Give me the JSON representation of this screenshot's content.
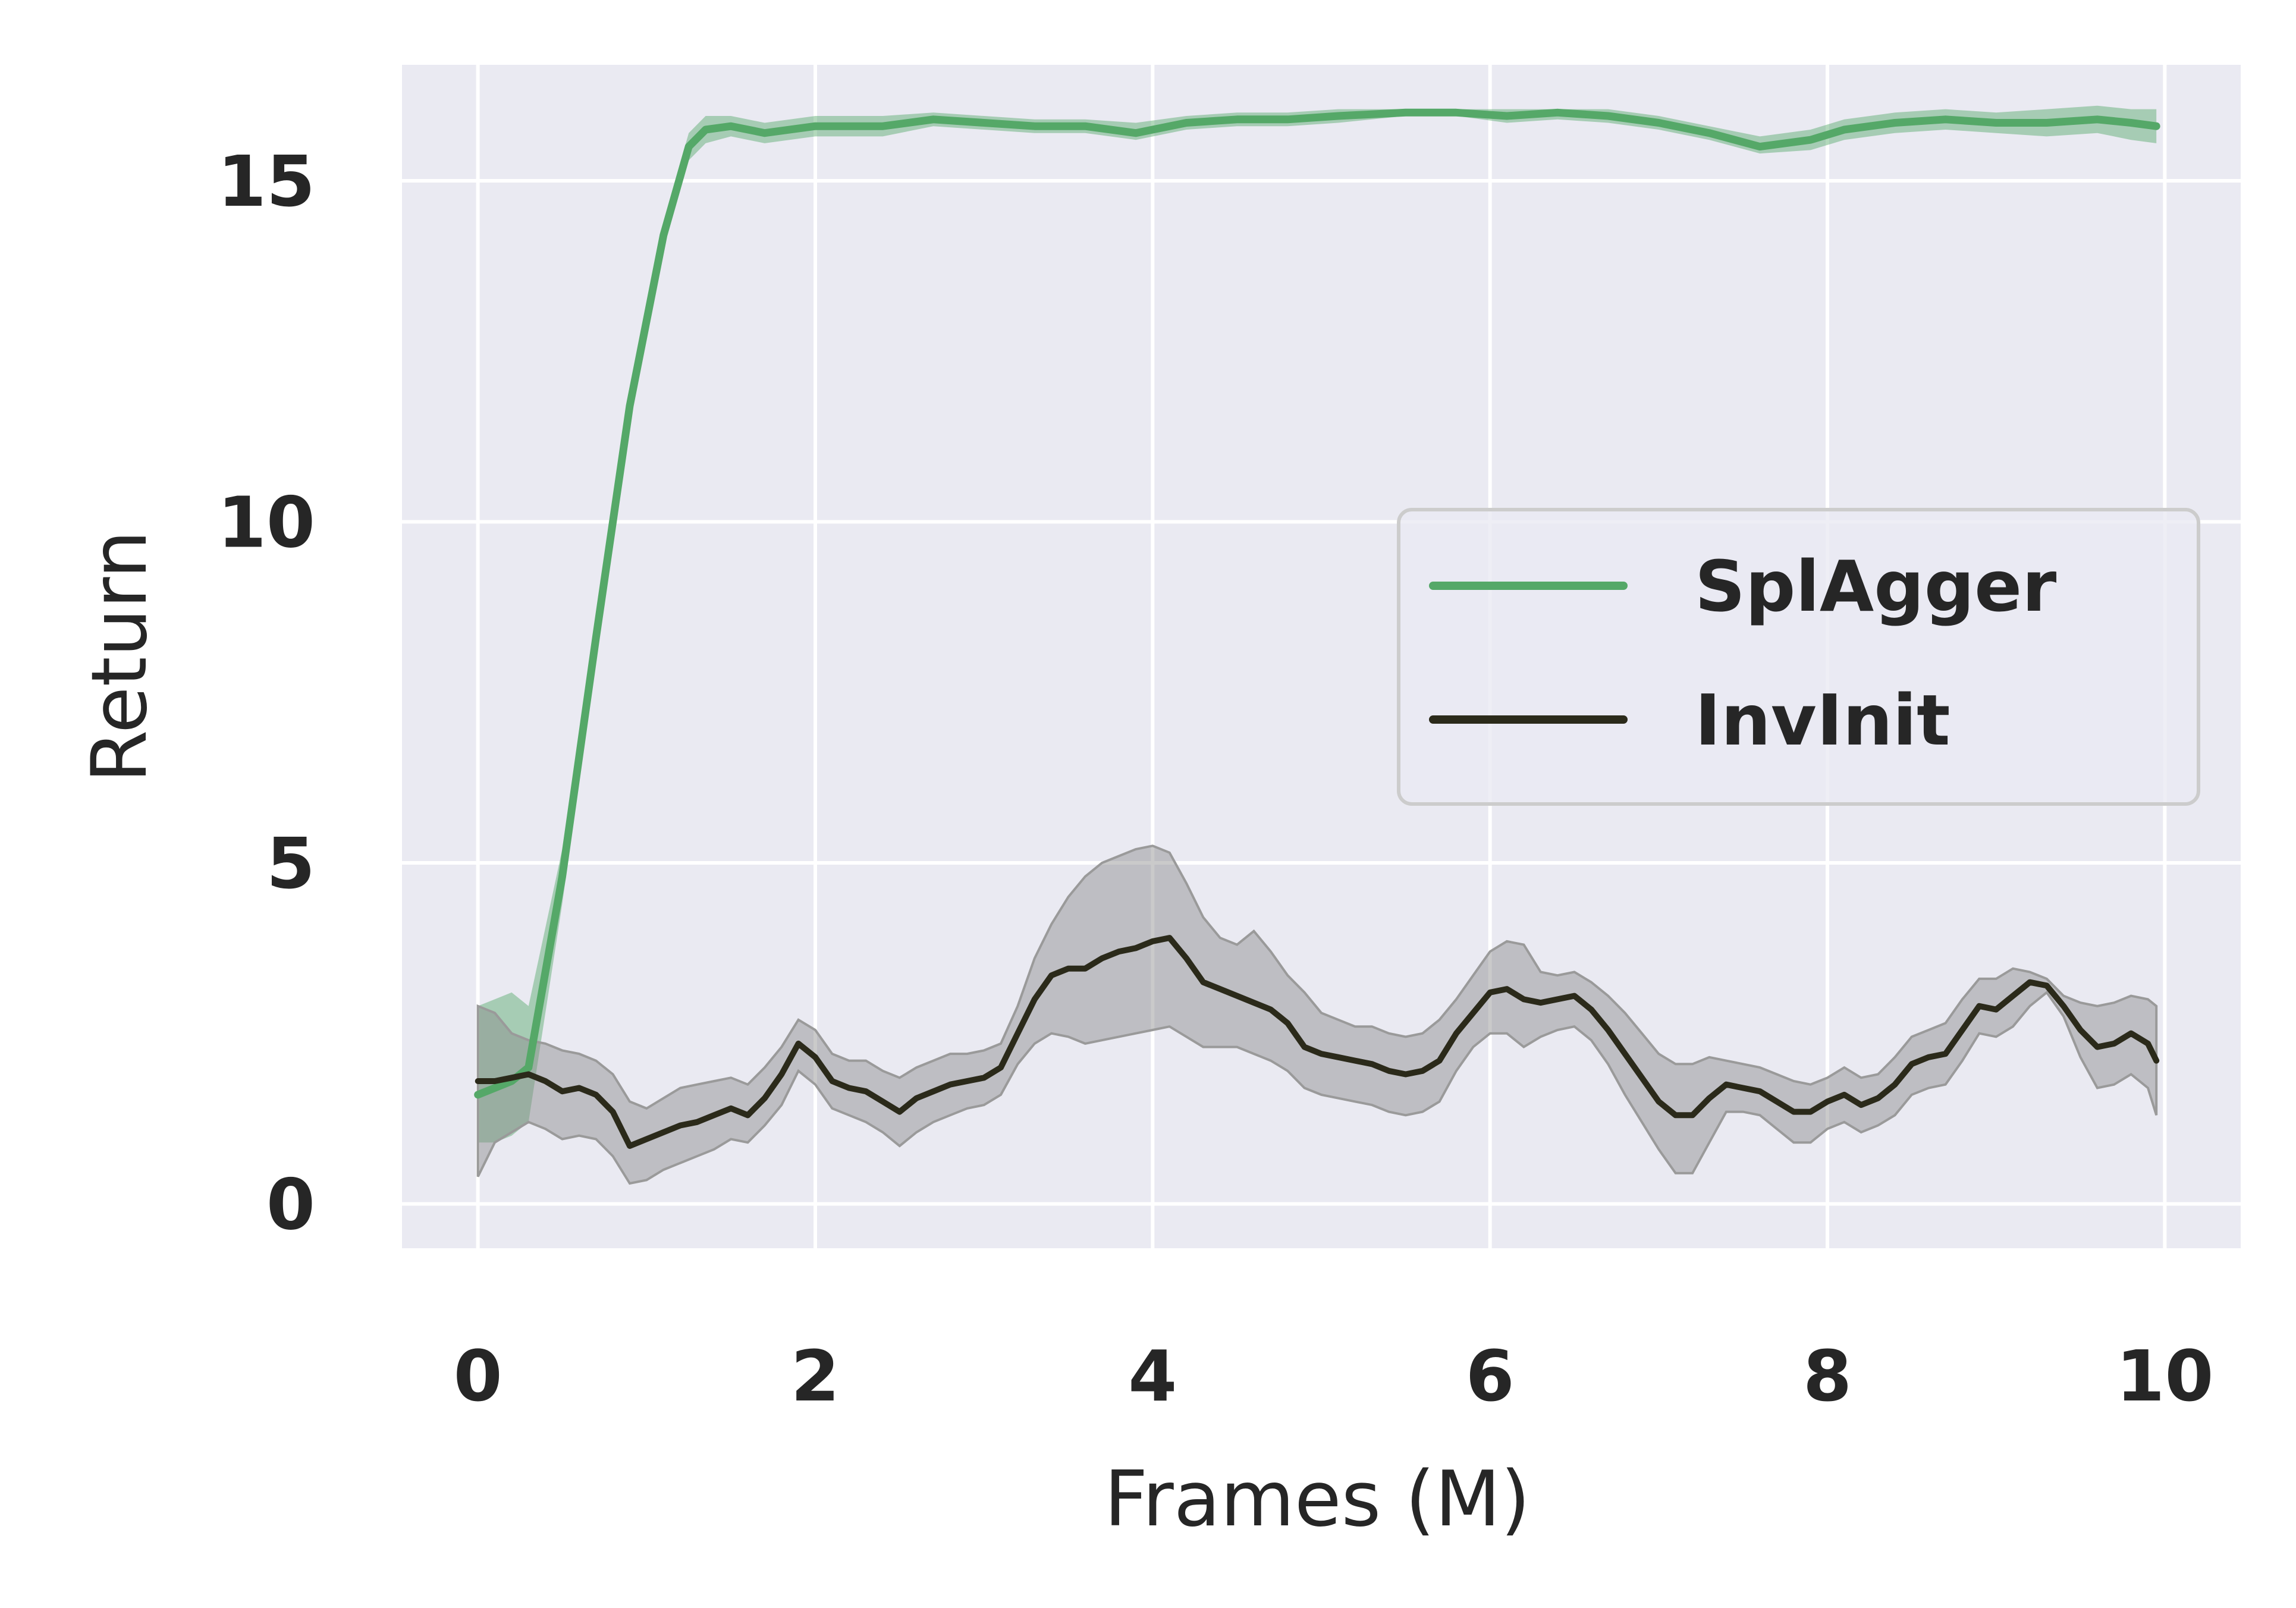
{
  "chart_data": {
    "type": "line",
    "title": "",
    "xlabel": "Frames (M)",
    "ylabel": "Return",
    "xlim": [
      -0.45,
      10.45
    ],
    "ylim": [
      -0.65,
      16.7
    ],
    "xticks": [
      0,
      2,
      4,
      6,
      8,
      10
    ],
    "yticks": [
      0,
      5,
      10,
      15
    ],
    "grid": true,
    "background": "#eaeaf2",
    "legend_position": "center-right",
    "series": [
      {
        "name": "SplAgger",
        "color": "#55a868",
        "x": [
          0,
          0.1,
          0.2,
          0.3,
          0.5,
          0.7,
          0.9,
          1.1,
          1.25,
          1.35,
          1.5,
          1.7,
          2.0,
          2.4,
          2.7,
          3.0,
          3.3,
          3.6,
          3.9,
          4.2,
          4.5,
          4.8,
          5.1,
          5.5,
          5.8,
          6.1,
          6.4,
          6.7,
          7.0,
          7.3,
          7.6,
          7.9,
          8.1,
          8.4,
          8.7,
          9.0,
          9.3,
          9.6,
          9.8,
          9.95
        ],
        "y": [
          1.6,
          1.7,
          1.8,
          2.0,
          4.8,
          8.3,
          11.7,
          14.2,
          15.5,
          15.75,
          15.8,
          15.7,
          15.8,
          15.8,
          15.9,
          15.85,
          15.8,
          15.8,
          15.7,
          15.85,
          15.9,
          15.9,
          15.95,
          16.0,
          16.0,
          15.95,
          16.0,
          15.95,
          15.85,
          15.7,
          15.5,
          15.6,
          15.75,
          15.85,
          15.9,
          15.85,
          15.85,
          15.9,
          15.85,
          15.8
        ],
        "upper": [
          2.9,
          3.0,
          3.1,
          2.9,
          5.2,
          8.6,
          11.9,
          14.4,
          15.7,
          15.95,
          15.95,
          15.85,
          15.95,
          15.95,
          16.0,
          15.95,
          15.9,
          15.9,
          15.85,
          15.95,
          16.0,
          16.0,
          16.05,
          16.05,
          16.05,
          16.05,
          16.05,
          16.05,
          15.95,
          15.8,
          15.65,
          15.75,
          15.9,
          16.0,
          16.05,
          16.0,
          16.05,
          16.1,
          16.05,
          16.05
        ],
        "lower": [
          0.9,
          0.9,
          1.0,
          1.2,
          4.4,
          8.0,
          11.5,
          14.0,
          15.3,
          15.55,
          15.65,
          15.55,
          15.65,
          15.65,
          15.8,
          15.75,
          15.7,
          15.7,
          15.6,
          15.75,
          15.8,
          15.8,
          15.85,
          15.95,
          15.95,
          15.85,
          15.9,
          15.85,
          15.75,
          15.6,
          15.4,
          15.45,
          15.6,
          15.7,
          15.75,
          15.7,
          15.65,
          15.7,
          15.6,
          15.55
        ]
      },
      {
        "name": "InvInit",
        "color": "#2b2a1a",
        "x": [
          0,
          0.1,
          0.2,
          0.3,
          0.4,
          0.5,
          0.6,
          0.7,
          0.8,
          0.9,
          1.0,
          1.1,
          1.2,
          1.3,
          1.4,
          1.5,
          1.6,
          1.7,
          1.8,
          1.9,
          2.0,
          2.1,
          2.2,
          2.3,
          2.4,
          2.5,
          2.6,
          2.7,
          2.8,
          2.9,
          3.0,
          3.1,
          3.2,
          3.3,
          3.4,
          3.5,
          3.6,
          3.7,
          3.8,
          3.9,
          4.0,
          4.1,
          4.2,
          4.3,
          4.4,
          4.5,
          4.6,
          4.7,
          4.8,
          4.9,
          5.0,
          5.1,
          5.2,
          5.3,
          5.4,
          5.5,
          5.6,
          5.7,
          5.8,
          5.9,
          6.0,
          6.1,
          6.2,
          6.3,
          6.4,
          6.5,
          6.6,
          6.7,
          6.8,
          6.9,
          7.0,
          7.1,
          7.2,
          7.3,
          7.4,
          7.5,
          7.6,
          7.7,
          7.8,
          7.9,
          8.0,
          8.1,
          8.2,
          8.3,
          8.4,
          8.5,
          8.6,
          8.7,
          8.8,
          8.9,
          9.0,
          9.1,
          9.2,
          9.3,
          9.4,
          9.5,
          9.6,
          9.7,
          9.8,
          9.9,
          9.95
        ],
        "y": [
          1.8,
          1.8,
          1.85,
          1.9,
          1.8,
          1.65,
          1.7,
          1.6,
          1.35,
          0.85,
          0.95,
          1.05,
          1.15,
          1.2,
          1.3,
          1.4,
          1.3,
          1.55,
          1.9,
          2.35,
          2.15,
          1.8,
          1.7,
          1.65,
          1.5,
          1.35,
          1.55,
          1.65,
          1.75,
          1.8,
          1.85,
          2.0,
          2.5,
          3.0,
          3.35,
          3.45,
          3.45,
          3.6,
          3.7,
          3.75,
          3.85,
          3.9,
          3.6,
          3.25,
          3.15,
          3.05,
          2.95,
          2.85,
          2.65,
          2.3,
          2.2,
          2.15,
          2.1,
          2.05,
          1.95,
          1.9,
          1.95,
          2.1,
          2.5,
          2.8,
          3.1,
          3.15,
          3.0,
          2.95,
          3.0,
          3.05,
          2.85,
          2.55,
          2.2,
          1.85,
          1.5,
          1.3,
          1.3,
          1.55,
          1.75,
          1.7,
          1.65,
          1.5,
          1.35,
          1.35,
          1.5,
          1.6,
          1.45,
          1.55,
          1.75,
          2.05,
          2.15,
          2.2,
          2.55,
          2.9,
          2.85,
          3.05,
          3.25,
          3.2,
          2.9,
          2.55,
          2.3,
          2.35,
          2.5,
          2.35,
          2.1
        ],
        "upper": [
          2.9,
          2.8,
          2.5,
          2.4,
          2.35,
          2.25,
          2.2,
          2.1,
          1.9,
          1.5,
          1.4,
          1.55,
          1.7,
          1.75,
          1.8,
          1.85,
          1.75,
          2.0,
          2.3,
          2.7,
          2.55,
          2.2,
          2.1,
          2.1,
          1.95,
          1.85,
          2.0,
          2.1,
          2.2,
          2.2,
          2.25,
          2.35,
          2.9,
          3.6,
          4.1,
          4.5,
          4.8,
          5.0,
          5.1,
          5.2,
          5.25,
          5.15,
          4.7,
          4.2,
          3.9,
          3.8,
          4.0,
          3.7,
          3.35,
          3.1,
          2.8,
          2.7,
          2.6,
          2.6,
          2.5,
          2.45,
          2.5,
          2.7,
          3.0,
          3.35,
          3.7,
          3.85,
          3.8,
          3.4,
          3.35,
          3.4,
          3.25,
          3.05,
          2.8,
          2.5,
          2.2,
          2.05,
          2.05,
          2.15,
          2.1,
          2.05,
          2.0,
          1.9,
          1.8,
          1.75,
          1.85,
          2.0,
          1.85,
          1.9,
          2.15,
          2.45,
          2.55,
          2.65,
          3.0,
          3.3,
          3.3,
          3.45,
          3.4,
          3.3,
          3.05,
          2.95,
          2.9,
          2.95,
          3.05,
          3.0,
          2.9
        ],
        "lower": [
          0.4,
          0.9,
          1.05,
          1.2,
          1.1,
          0.95,
          1.0,
          0.95,
          0.7,
          0.3,
          0.35,
          0.5,
          0.6,
          0.7,
          0.8,
          0.95,
          0.9,
          1.15,
          1.45,
          1.95,
          1.75,
          1.4,
          1.3,
          1.2,
          1.05,
          0.85,
          1.05,
          1.2,
          1.3,
          1.4,
          1.45,
          1.6,
          2.05,
          2.35,
          2.5,
          2.45,
          2.35,
          2.4,
          2.45,
          2.5,
          2.55,
          2.6,
          2.45,
          2.3,
          2.3,
          2.3,
          2.2,
          2.1,
          1.95,
          1.7,
          1.6,
          1.55,
          1.5,
          1.45,
          1.35,
          1.3,
          1.35,
          1.5,
          1.95,
          2.3,
          2.5,
          2.5,
          2.3,
          2.45,
          2.55,
          2.6,
          2.4,
          2.05,
          1.6,
          1.2,
          0.8,
          0.45,
          0.45,
          0.9,
          1.35,
          1.35,
          1.3,
          1.1,
          0.9,
          0.9,
          1.1,
          1.2,
          1.05,
          1.15,
          1.3,
          1.6,
          1.7,
          1.75,
          2.1,
          2.5,
          2.45,
          2.6,
          2.9,
          3.1,
          2.75,
          2.15,
          1.7,
          1.75,
          1.9,
          1.7,
          1.3
        ]
      }
    ]
  }
}
